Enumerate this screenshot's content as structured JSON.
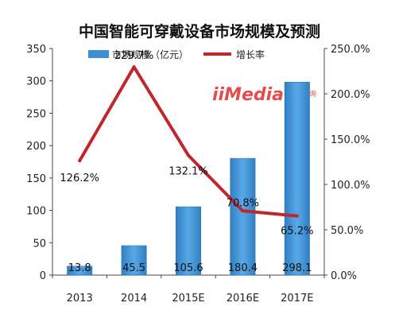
{
  "chart_data": {
    "type": "bar+line",
    "title": "中国智能可穿戴设备市场规模及预测",
    "categories": [
      "2013",
      "2014",
      "2015E",
      "2016E",
      "2017E"
    ],
    "series": [
      {
        "name": "市场规模（亿元）",
        "type": "bar",
        "axis": "left",
        "values": [
          13.8,
          45.5,
          105.6,
          180.4,
          298.1
        ],
        "labels": [
          "13.8",
          "45.5",
          "105.6",
          "180.4",
          "298.1"
        ],
        "color": "#3d8fd1"
      },
      {
        "name": "增长率",
        "type": "line",
        "axis": "right",
        "values": [
          126.2,
          229.7,
          132.1,
          70.8,
          65.2
        ],
        "labels": [
          "126.2%",
          "229.7%",
          "132.1%",
          "70.8%",
          "65.2%"
        ],
        "color": "#c0272d"
      }
    ],
    "y_left": {
      "min": 0,
      "max": 350,
      "step": 50,
      "ticks": [
        "0",
        "50",
        "100",
        "150",
        "200",
        "250",
        "300",
        "350"
      ]
    },
    "y_right": {
      "min": 0,
      "max": 250,
      "step": 50,
      "ticks": [
        "0.0%",
        "50.0%",
        "100.0%",
        "150.0%",
        "200.0%",
        "250.0%"
      ]
    },
    "legend_position": "top-center",
    "grid": false
  },
  "watermark": {
    "text": "iiMedia",
    "sub": "艾媒咨询"
  }
}
